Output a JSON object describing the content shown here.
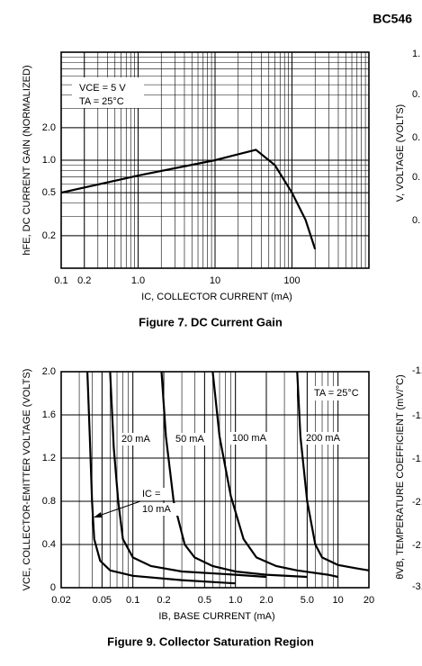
{
  "header": {
    "part": "BC546"
  },
  "chart_data": [
    {
      "type": "line",
      "title": "Figure 7. DC Current Gain",
      "x_label": "IC, COLLECTOR CURRENT (mA)",
      "y_label": "hFE, DC CURRENT GAIN (NORMALIZED)",
      "xlog": true,
      "ylog": true,
      "grid": true,
      "xlim": [
        0.1,
        1000
      ],
      "ylim": [
        0.1,
        10
      ],
      "xticks": [
        0.1,
        0.2,
        {
          "value": 1,
          "label": "1.0"
        },
        10,
        100
      ],
      "yticks": [
        0.2,
        0.5,
        {
          "value": 1,
          "label": "1.0"
        },
        {
          "value": 2,
          "label": "2.0"
        }
      ],
      "annotations": [
        "VCE = 5 V",
        "TA = 25°C"
      ],
      "series": [
        {
          "color": "#000000",
          "x": [
            0.1,
            1,
            10,
            34,
            60,
            100,
            150,
            200
          ],
          "values": [
            0.5,
            0.72,
            1.0,
            1.25,
            0.9,
            0.5,
            0.28,
            0.15
          ]
        }
      ]
    },
    {
      "type": "line",
      "title": "Figure 9. Collector Saturation Region",
      "x_label": "IB, BASE CURRENT (mA)",
      "y_label": "VCE, COLLECTOR-EMITTER VOLTAGE (VOLTS)",
      "xlog": true,
      "ylog": false,
      "grid": true,
      "xlim": [
        0.02,
        20
      ],
      "ylim": [
        0,
        2
      ],
      "xticks": [
        0.02,
        0.05,
        0.1,
        0.2,
        0.5,
        {
          "value": 1,
          "label": "1.0"
        },
        {
          "value": 2,
          "label": "2.0"
        },
        {
          "value": 5,
          "label": "5.0"
        },
        10,
        20
      ],
      "yticks": [
        0,
        0.4,
        0.8,
        1.2,
        1.6,
        {
          "value": 2,
          "label": "2.0"
        }
      ],
      "annotations": [
        "TA = 25°C",
        "IC ="
      ],
      "series": [
        {
          "name": "10 mA",
          "color": "#000000",
          "x": [
            0.036,
            0.038,
            0.04,
            0.042,
            0.048,
            0.06,
            0.1,
            0.3,
            1.0
          ],
          "values": [
            2.0,
            1.4,
            0.8,
            0.45,
            0.25,
            0.16,
            0.11,
            0.07,
            0.04
          ]
        },
        {
          "name": "20 mA",
          "color": "#000000",
          "x": [
            0.06,
            0.065,
            0.072,
            0.08,
            0.1,
            0.15,
            0.3,
            1,
            2
          ],
          "values": [
            2.0,
            1.3,
            0.8,
            0.45,
            0.28,
            0.2,
            0.15,
            0.12,
            0.1
          ]
        },
        {
          "name": "50 mA",
          "color": "#000000",
          "x": [
            0.19,
            0.21,
            0.25,
            0.32,
            0.4,
            0.6,
            1,
            2,
            5
          ],
          "values": [
            2.0,
            1.4,
            0.8,
            0.4,
            0.28,
            0.2,
            0.15,
            0.12,
            0.1
          ]
        },
        {
          "name": "100 mA",
          "color": "#000000",
          "x": [
            0.6,
            0.7,
            0.9,
            1.2,
            1.6,
            2.5,
            4,
            8,
            10
          ],
          "values": [
            2.0,
            1.4,
            0.85,
            0.45,
            0.28,
            0.2,
            0.16,
            0.12,
            0.1
          ]
        },
        {
          "name": "200 mA",
          "color": "#000000",
          "x": [
            4,
            4.3,
            5,
            6,
            7,
            10,
            15,
            20
          ],
          "values": [
            2.0,
            1.4,
            0.8,
            0.4,
            0.28,
            0.21,
            0.18,
            0.16
          ]
        }
      ]
    }
  ],
  "right_edge": {
    "top": {
      "label": "V, VOLTAGE (VOLTS)",
      "ticks": [
        "1.",
        "0.",
        "0.",
        "0.",
        "0."
      ]
    },
    "bottom": {
      "label": "θVB, TEMPERATURE COEFFICIENT (mV/°C)",
      "ticks": [
        "-1.",
        "-1.",
        "-1.",
        "-2.",
        "-2.",
        "-3."
      ]
    }
  }
}
